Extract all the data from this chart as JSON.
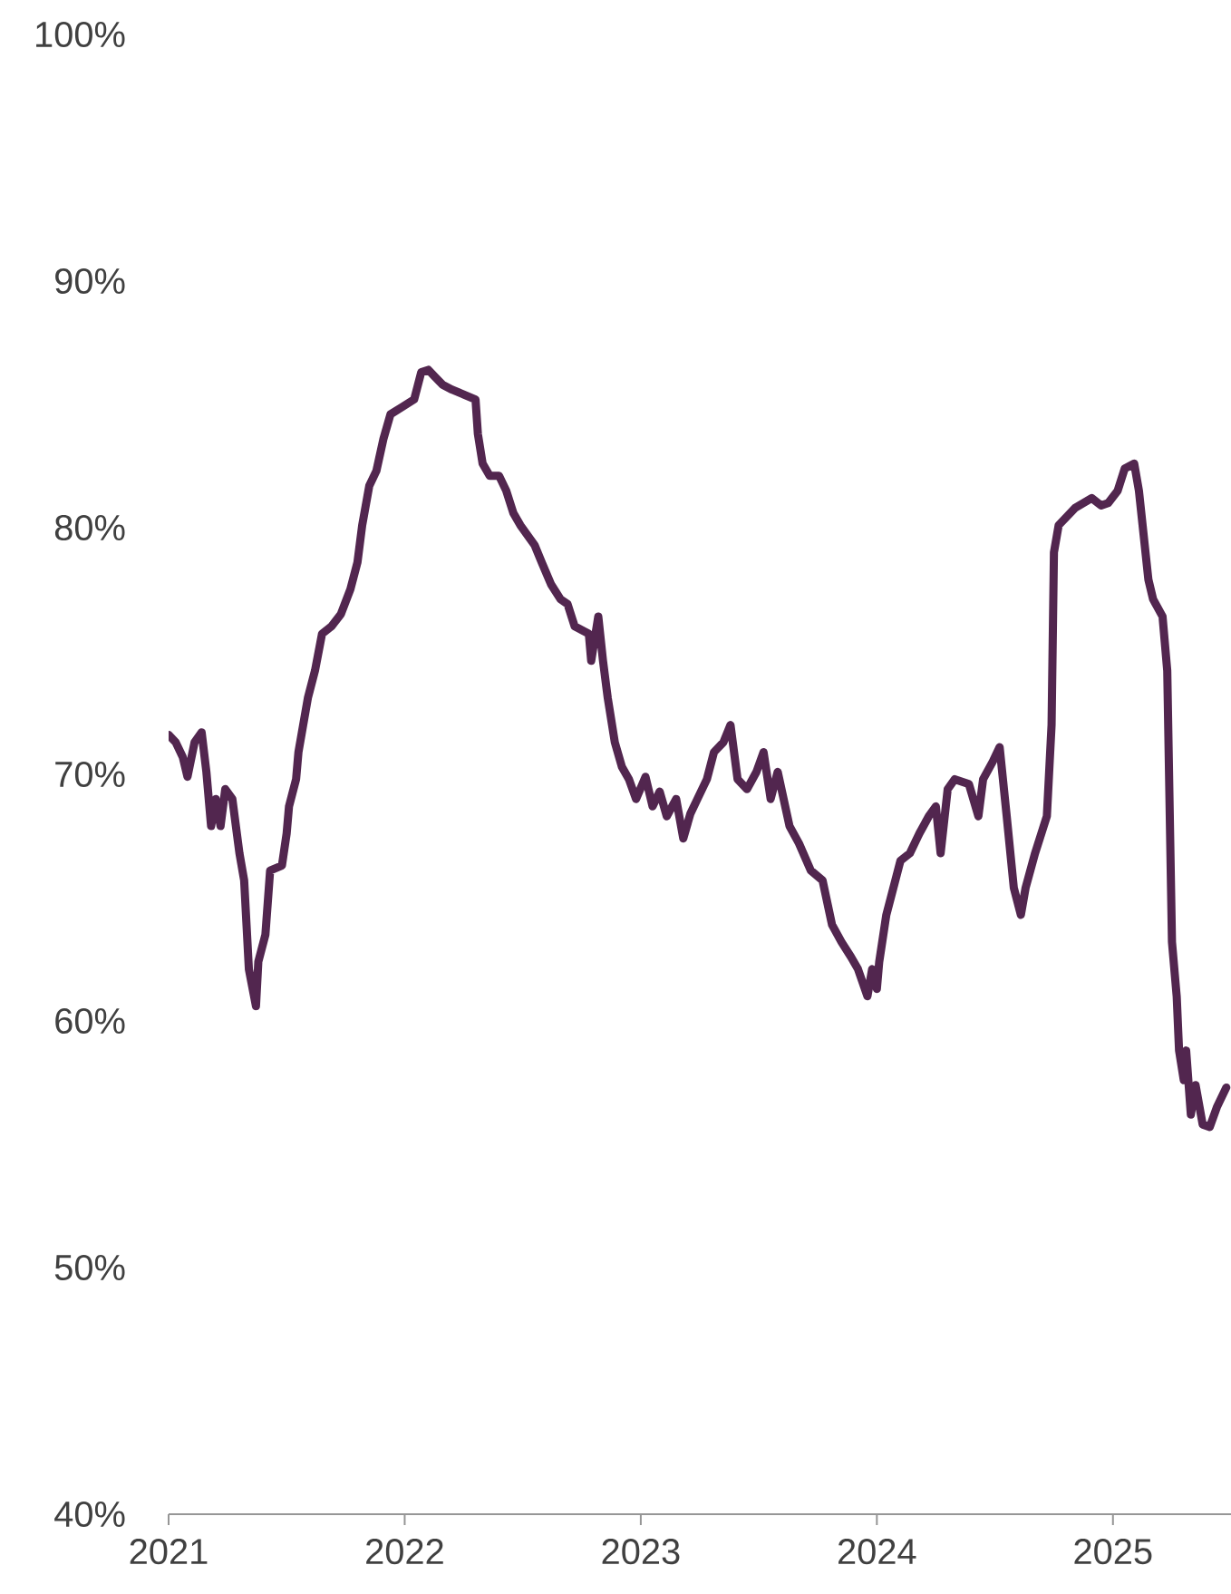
{
  "chart_data": {
    "type": "line",
    "x": [
      2021.0,
      2021.03,
      2021.06,
      2021.08,
      2021.11,
      2021.14,
      2021.16,
      2021.18,
      2021.2,
      2021.22,
      2021.24,
      2021.27,
      2021.3,
      2021.32,
      2021.34,
      2021.37,
      2021.38,
      2021.41,
      2021.43,
      2021.48,
      2021.5,
      2021.51,
      2021.54,
      2021.55,
      2021.57,
      2021.59,
      2021.62,
      2021.65,
      2021.69,
      2021.73,
      2021.77,
      2021.8,
      2021.82,
      2021.85,
      2021.88,
      2021.91,
      2021.94,
      2021.99,
      2022.04,
      2022.07,
      2022.1,
      2022.13,
      2022.16,
      2022.2,
      2022.25,
      2022.3,
      2022.31,
      2022.33,
      2022.36,
      2022.4,
      2022.43,
      2022.46,
      2022.49,
      2022.55,
      2022.58,
      2022.62,
      2022.66,
      2022.69,
      2022.72,
      2022.78,
      2022.79,
      2022.82,
      2022.84,
      2022.86,
      2022.89,
      2022.92,
      2022.95,
      2022.98,
      2023.02,
      2023.05,
      2023.08,
      2023.11,
      2023.15,
      2023.18,
      2023.21,
      2023.24,
      2023.28,
      2023.31,
      2023.35,
      2023.38,
      2023.41,
      2023.45,
      2023.49,
      2023.52,
      2023.55,
      2023.58,
      2023.63,
      2023.67,
      2023.72,
      2023.77,
      2023.81,
      2023.85,
      2023.89,
      2023.92,
      2023.96,
      2023.98,
      2024.0,
      2024.01,
      2024.04,
      2024.07,
      2024.1,
      2024.14,
      2024.18,
      2024.22,
      2024.25,
      2024.27,
      2024.3,
      2024.33,
      2024.39,
      2024.43,
      2024.45,
      2024.49,
      2024.52,
      2024.55,
      2024.58,
      2024.61,
      2024.63,
      2024.67,
      2024.72,
      2024.74,
      2024.75,
      2024.77,
      2024.84,
      2024.91,
      2024.95,
      2024.98,
      2025.02,
      2025.05,
      2025.09,
      2025.11,
      2025.15,
      2025.17,
      2025.21,
      2025.23,
      2025.25,
      2025.27,
      2025.28,
      2025.3,
      2025.31,
      2025.33,
      2025.35,
      2025.38,
      2025.41,
      2025.44,
      2025.48
    ],
    "series": [
      {
        "color": "#52264f",
        "values": [
          71.6,
          71.3,
          70.7,
          69.9,
          71.3,
          71.7,
          70.1,
          67.9,
          69.0,
          67.9,
          69.4,
          69.0,
          66.8,
          65.7,
          62.1,
          60.6,
          62.4,
          63.5,
          66.1,
          66.3,
          67.6,
          68.7,
          69.8,
          70.9,
          72.0,
          73.1,
          74.2,
          75.7,
          76.0,
          76.5,
          77.5,
          78.6,
          80.1,
          81.7,
          82.3,
          83.6,
          84.6,
          84.9,
          85.2,
          86.3,
          86.4,
          86.1,
          85.8,
          85.6,
          85.4,
          85.2,
          83.8,
          82.6,
          82.1,
          82.1,
          81.5,
          80.6,
          80.1,
          79.3,
          78.6,
          77.7,
          77.1,
          76.9,
          76.0,
          75.7,
          74.6,
          76.4,
          74.6,
          73.1,
          71.3,
          70.3,
          69.8,
          69.0,
          69.9,
          68.7,
          69.3,
          68.3,
          69.0,
          67.4,
          68.4,
          69.0,
          69.8,
          70.9,
          71.3,
          72.0,
          69.8,
          69.4,
          70.1,
          70.9,
          69.0,
          70.1,
          67.9,
          67.2,
          66.1,
          65.7,
          63.9,
          63.2,
          62.6,
          62.1,
          61.0,
          62.1,
          61.3,
          62.4,
          64.3,
          65.4,
          66.5,
          66.8,
          67.6,
          68.3,
          68.7,
          66.8,
          69.4,
          69.8,
          69.6,
          68.3,
          69.8,
          70.5,
          71.1,
          68.3,
          65.4,
          64.3,
          65.4,
          66.8,
          68.3,
          72.0,
          79.0,
          80.1,
          80.8,
          81.2,
          80.9,
          81.0,
          81.5,
          82.4,
          82.6,
          81.5,
          77.9,
          77.1,
          76.4,
          74.2,
          63.2,
          61.0,
          58.8,
          57.6,
          58.8,
          56.2,
          57.4,
          55.8,
          55.7,
          56.5,
          57.3
        ]
      }
    ],
    "xlim": [
      2021,
      2025.5
    ],
    "xticks": [
      2021,
      2022,
      2023,
      2024,
      2025
    ],
    "ylim": [
      40,
      100
    ],
    "yticks": [
      {
        "value": 40,
        "label": "40%"
      },
      {
        "value": 50,
        "label": "50%"
      },
      {
        "value": 60,
        "label": "60%"
      },
      {
        "value": 70,
        "label": "70%"
      },
      {
        "value": 80,
        "label": "80%"
      },
      {
        "value": 90,
        "label": "90%"
      },
      {
        "value": 100,
        "label": "100%"
      }
    ]
  }
}
